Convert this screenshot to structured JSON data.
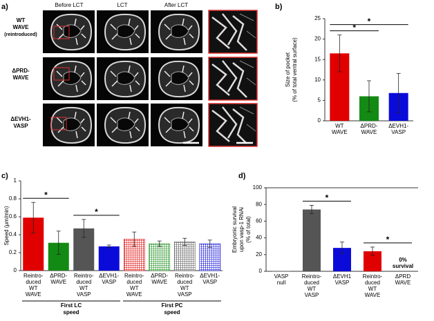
{
  "figure_a": {
    "label": "a)",
    "columns": [
      "Before LCT",
      "LCT",
      "After LCT"
    ],
    "rows": [
      [
        "WT",
        "WAVE",
        "(reintroduced)"
      ],
      [
        "ΔPRD-",
        "WAVE"
      ],
      [
        "ΔEVH1-",
        "VASP"
      ]
    ]
  },
  "chart_data": [
    {
      "type": "bar",
      "panel": "b)",
      "ylabel": [
        "Size of pocket",
        "(% of total ventral surface)"
      ],
      "categories": [
        [
          "WT",
          "WAVE"
        ],
        [
          "ΔPRD-",
          "WAVE"
        ],
        [
          "ΔEVH1-",
          "VASP"
        ]
      ],
      "values": [
        16.5,
        6,
        6.8
      ],
      "errors": [
        4.5,
        3.8,
        4.8
      ],
      "colors": [
        "#e00000",
        "#138a13",
        "#0b0bd9"
      ],
      "hatched": [
        false,
        false,
        false
      ],
      "ylim": [
        0,
        25
      ],
      "yticks": [
        0,
        5,
        10,
        15,
        20,
        25
      ],
      "significance": [
        {
          "pair": [
            0,
            1
          ],
          "label": "*"
        },
        {
          "pair": [
            0,
            2
          ],
          "label": "*"
        }
      ]
    },
    {
      "type": "bar",
      "panel": "c)",
      "ylabel": [
        "Speed (μm/min)"
      ],
      "categories": [
        [
          "Reintro-",
          "duced",
          "WT",
          "WAVE"
        ],
        [
          "ΔPRD-",
          "WAVE"
        ],
        [
          "Reintro-",
          "duced",
          "WT",
          "VASP"
        ],
        [
          "ΔEVH1-",
          "VASP"
        ],
        [
          "Reintro-",
          "duced",
          "WT",
          "WAVE"
        ],
        [
          "ΔPRD-",
          "WAVE"
        ],
        [
          "Reintro-",
          "duced",
          "WT",
          "VASP"
        ],
        [
          "ΔEVH1-",
          "VASP"
        ]
      ],
      "values": [
        0.59,
        0.31,
        0.47,
        0.27,
        0.35,
        0.3,
        0.32,
        0.3
      ],
      "errors": [
        0.17,
        0.13,
        0.1,
        0.015,
        0.08,
        0.03,
        0.04,
        0.04
      ],
      "colors": [
        "#e00000",
        "#138a13",
        "#555555",
        "#0b0bd9",
        "#e00000",
        "#138a13",
        "#555555",
        "#0b0bd9"
      ],
      "hatched": [
        false,
        false,
        false,
        false,
        true,
        true,
        true,
        true
      ],
      "ylim": [
        0,
        1
      ],
      "yticks": [
        0,
        0.2,
        0.4,
        0.6,
        0.8,
        1
      ],
      "significance": [
        {
          "pair": [
            0,
            1
          ],
          "label": "*"
        },
        {
          "pair": [
            2,
            3
          ],
          "label": "*"
        }
      ],
      "groups": [
        {
          "label": [
            "First LC",
            "speed"
          ],
          "span": [
            0,
            3
          ]
        },
        {
          "label": [
            "First PC",
            "speed"
          ],
          "span": [
            4,
            7
          ]
        }
      ]
    },
    {
      "type": "bar",
      "panel": "d)",
      "ylabel": [
        "Embryonic survival",
        "upon vasp-1 RNAi",
        "(% of total)"
      ],
      "categories": [
        [
          "VASP",
          "null"
        ],
        [
          "Reintro-",
          "duced",
          "WT",
          "VASP"
        ],
        [
          "ΔEVH1",
          "VASP"
        ],
        [
          "Reintro-",
          "duced",
          "WT",
          "WAVE"
        ],
        [
          "ΔPRD",
          "WAVE"
        ]
      ],
      "values": [
        1,
        74,
        28,
        24,
        0
      ],
      "errors": [
        0,
        5,
        7,
        5,
        0
      ],
      "value_labels": [
        null,
        null,
        null,
        null,
        "0% survival"
      ],
      "value_label_color": "#138a13",
      "colors": [
        "#bbbbbb",
        "#555555",
        "#0b0bd9",
        "#e00000",
        "#ffffff"
      ],
      "hatched": [
        false,
        false,
        false,
        false,
        false
      ],
      "ylim": [
        0,
        100
      ],
      "yticks": [
        0,
        20,
        40,
        60,
        80,
        100
      ],
      "significance": [
        {
          "pair": [
            1,
            2
          ],
          "label": "*"
        },
        {
          "pair": [
            3,
            4
          ],
          "label": "*"
        }
      ]
    }
  ]
}
